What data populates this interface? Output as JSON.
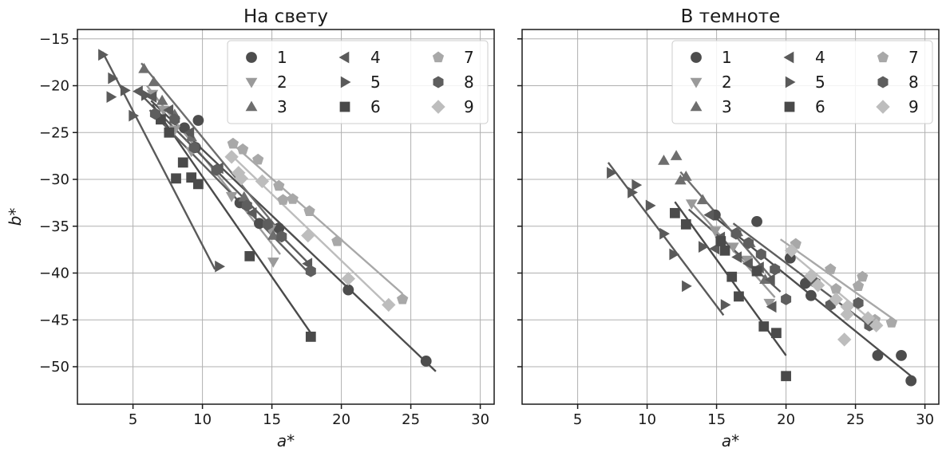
{
  "chart_data": [
    {
      "type": "scatter",
      "title": "На свету",
      "xlabel": "a*",
      "ylabel": "b*",
      "xlim": [
        1,
        31
      ],
      "ylim": [
        -54,
        -14
      ],
      "xticks": [
        5,
        10,
        15,
        20,
        25,
        30
      ],
      "yticks": [
        -15,
        -20,
        -25,
        -30,
        -35,
        -40,
        -45,
        -50
      ],
      "grid": true,
      "legend": {
        "location": "top-right",
        "columns": 3
      },
      "series": [
        {
          "name": "1",
          "marker": "circle",
          "color": "#4d4d4d",
          "points": [
            [
              9.7,
              -23.7
            ],
            [
              8.7,
              -24.5
            ],
            [
              9.5,
              -26.6
            ],
            [
              12.7,
              -32.5
            ],
            [
              14.1,
              -34.7
            ],
            [
              15.5,
              -35.2
            ],
            [
              20.5,
              -41.8
            ],
            [
              26.1,
              -49.4
            ]
          ],
          "fit": [
            [
              6.3,
              -21.6
            ],
            [
              26.8,
              -50.5
            ]
          ]
        },
        {
          "name": "2",
          "marker": "triangle-down",
          "color": "#9a9a9a",
          "points": [
            [
              6.4,
              -20.9
            ],
            [
              7.2,
              -22.6
            ],
            [
              8.0,
              -24.7
            ],
            [
              9.2,
              -27.0
            ],
            [
              12.1,
              -31.8
            ],
            [
              14.9,
              -35.3
            ],
            [
              15.1,
              -38.8
            ]
          ],
          "fit": [
            [
              6.0,
              -20.0
            ],
            [
              15.6,
              -38.0
            ]
          ]
        },
        {
          "name": "3",
          "marker": "triangle-up",
          "color": "#6e6e6e",
          "points": [
            [
              5.8,
              -18.2
            ],
            [
              6.5,
              -19.6
            ],
            [
              7.1,
              -21.6
            ],
            [
              8.0,
              -23.1
            ],
            [
              9.2,
              -25.5
            ],
            [
              13.0,
              -31.9
            ],
            [
              15.1,
              -36.0
            ]
          ],
          "fit": [
            [
              5.6,
              -17.6
            ],
            [
              15.6,
              -35.6
            ]
          ]
        },
        {
          "name": "4",
          "marker": "triangle-left",
          "color": "#5a5a5a",
          "points": [
            [
              5.4,
              -20.6
            ],
            [
              6.4,
              -21.2
            ],
            [
              7.6,
              -22.6
            ],
            [
              9.1,
              -25.0
            ],
            [
              11.2,
              -28.8
            ],
            [
              13.6,
              -33.6
            ],
            [
              17.6,
              -39.0
            ]
          ],
          "fit": [
            [
              5.2,
              -20.4
            ],
            [
              17.8,
              -39.2
            ]
          ]
        },
        {
          "name": "5",
          "marker": "triangle-right",
          "color": "#5a5a5a",
          "points": [
            [
              2.8,
              -16.7
            ],
            [
              3.5,
              -19.2
            ],
            [
              3.4,
              -21.2
            ],
            [
              4.4,
              -20.5
            ],
            [
              5.0,
              -23.2
            ],
            [
              5.9,
              -21.0
            ],
            [
              11.2,
              -39.3
            ]
          ],
          "fit": [
            [
              2.8,
              -16.4
            ],
            [
              10.9,
              -39.6
            ]
          ]
        },
        {
          "name": "6",
          "marker": "square",
          "color": "#4a4a4a",
          "points": [
            [
              7.0,
              -23.6
            ],
            [
              7.6,
              -25.0
            ],
            [
              8.6,
              -28.2
            ],
            [
              8.1,
              -29.9
            ],
            [
              9.7,
              -30.5
            ],
            [
              9.2,
              -29.8
            ],
            [
              13.4,
              -38.2
            ],
            [
              17.8,
              -46.8
            ]
          ],
          "fit": [
            [
              6.4,
              -22.0
            ],
            [
              17.8,
              -46.4
            ]
          ]
        },
        {
          "name": "7",
          "marker": "pentagon",
          "color": "#a8a8a8",
          "points": [
            [
              12.2,
              -26.2
            ],
            [
              12.9,
              -26.8
            ],
            [
              14.0,
              -27.9
            ],
            [
              15.5,
              -30.7
            ],
            [
              15.8,
              -32.2
            ],
            [
              16.5,
              -32.1
            ],
            [
              17.7,
              -33.4
            ],
            [
              19.7,
              -36.6
            ],
            [
              24.4,
              -42.8
            ]
          ],
          "fit": [
            [
              12.0,
              -26.0
            ],
            [
              24.4,
              -42.2
            ]
          ]
        },
        {
          "name": "8",
          "marker": "hexagon",
          "color": "#5e5e5e",
          "points": [
            [
              6.6,
              -23.0
            ],
            [
              8.0,
              -23.6
            ],
            [
              9.4,
              -26.6
            ],
            [
              11.0,
              -29.0
            ],
            [
              13.2,
              -32.8
            ],
            [
              14.7,
              -34.8
            ],
            [
              15.7,
              -36.1
            ],
            [
              17.8,
              -39.8
            ]
          ],
          "fit": [
            [
              6.2,
              -22.6
            ],
            [
              17.8,
              -40.2
            ]
          ]
        },
        {
          "name": "9",
          "marker": "diamond",
          "color": "#bdbdbd",
          "points": [
            [
              12.1,
              -27.6
            ],
            [
              12.6,
              -29.3
            ],
            [
              12.8,
              -29.9
            ],
            [
              14.3,
              -30.2
            ],
            [
              17.6,
              -36.0
            ],
            [
              20.5,
              -40.6
            ],
            [
              23.4,
              -43.4
            ]
          ],
          "fit": [
            [
              12.0,
              -27.3
            ],
            [
              23.6,
              -43.8
            ]
          ]
        }
      ]
    },
    {
      "type": "scatter",
      "title": "В темноте",
      "xlabel": "a*",
      "ylabel": "",
      "xlim": [
        1,
        31
      ],
      "ylim": [
        -54,
        -14
      ],
      "xticks": [
        5,
        10,
        15,
        20,
        25,
        30
      ],
      "yticks": [
        -15,
        -20,
        -25,
        -30,
        -35,
        -40,
        -45,
        -50
      ],
      "grid": true,
      "legend": {
        "location": "top-right",
        "columns": 3
      },
      "series": [
        {
          "name": "1",
          "marker": "circle",
          "color": "#4d4d4d",
          "points": [
            [
              17.9,
              -34.5
            ],
            [
              14.9,
              -33.8
            ],
            [
              20.3,
              -38.4
            ],
            [
              21.4,
              -41.1
            ],
            [
              21.8,
              -42.4
            ],
            [
              26.6,
              -48.8
            ],
            [
              28.3,
              -48.8
            ],
            [
              29.0,
              -51.5
            ]
          ],
          "fit": [
            [
              14.5,
              -33.6
            ],
            [
              29.0,
              -51.0
            ]
          ]
        },
        {
          "name": "2",
          "marker": "triangle-down",
          "color": "#9a9a9a",
          "points": [
            [
              13.2,
              -32.6
            ],
            [
              14.9,
              -35.5
            ],
            [
              16.2,
              -37.2
            ],
            [
              17.2,
              -38.6
            ],
            [
              18.8,
              -43.2
            ]
          ],
          "fit": [
            [
              13.0,
              -32.2
            ],
            [
              19.2,
              -42.6
            ]
          ]
        },
        {
          "name": "3",
          "marker": "triangle-up",
          "color": "#6e6e6e",
          "points": [
            [
              11.2,
              -28.0
            ],
            [
              12.1,
              -27.5
            ],
            [
              12.4,
              -30.1
            ],
            [
              12.8,
              -29.7
            ],
            [
              14.0,
              -32.2
            ],
            [
              16.5,
              -35.6
            ],
            [
              17.4,
              -36.8
            ],
            [
              18.5,
              -40.7
            ]
          ],
          "fit": [
            [
              12.4,
              -29.2
            ],
            [
              18.9,
              -40.4
            ]
          ]
        },
        {
          "name": "4",
          "marker": "triangle-left",
          "color": "#5a5a5a",
          "points": [
            [
              14.5,
              -33.8
            ],
            [
              14.9,
              -37.4
            ],
            [
              15.3,
              -36.2
            ],
            [
              16.5,
              -38.3
            ],
            [
              17.3,
              -39.0
            ],
            [
              18.1,
              -39.4
            ],
            [
              18.9,
              -40.7
            ],
            [
              19.0,
              -43.6
            ]
          ],
          "fit": [
            [
              13.0,
              -33.2
            ],
            [
              19.6,
              -42.0
            ]
          ]
        },
        {
          "name": "5",
          "marker": "triangle-right",
          "color": "#5a5a5a",
          "points": [
            [
              7.4,
              -29.3
            ],
            [
              8.9,
              -31.4
            ],
            [
              9.2,
              -30.6
            ],
            [
              10.2,
              -32.8
            ],
            [
              11.2,
              -35.8
            ],
            [
              11.9,
              -38.0
            ],
            [
              12.8,
              -41.4
            ],
            [
              14.0,
              -37.2
            ],
            [
              15.6,
              -43.4
            ]
          ],
          "fit": [
            [
              7.2,
              -28.2
            ],
            [
              15.5,
              -44.5
            ]
          ]
        },
        {
          "name": "6",
          "marker": "square",
          "color": "#4a4a4a",
          "points": [
            [
              12.0,
              -33.6
            ],
            [
              12.8,
              -34.8
            ],
            [
              15.3,
              -36.6
            ],
            [
              15.6,
              -37.6
            ],
            [
              16.1,
              -40.4
            ],
            [
              16.6,
              -42.5
            ],
            [
              17.9,
              -39.8
            ],
            [
              18.4,
              -45.7
            ],
            [
              19.3,
              -46.4
            ],
            [
              20.0,
              -51.0
            ]
          ],
          "fit": [
            [
              12.0,
              -32.4
            ],
            [
              20.0,
              -48.8
            ]
          ]
        },
        {
          "name": "7",
          "marker": "pentagon",
          "color": "#a8a8a8",
          "points": [
            [
              20.7,
              -36.9
            ],
            [
              23.2,
              -39.6
            ],
            [
              23.6,
              -41.7
            ],
            [
              25.2,
              -41.4
            ],
            [
              25.5,
              -40.4
            ],
            [
              26.4,
              -45.0
            ],
            [
              27.6,
              -45.3
            ]
          ],
          "fit": [
            [
              19.6,
              -36.4
            ],
            [
              27.8,
              -45.0
            ]
          ]
        },
        {
          "name": "8",
          "marker": "hexagon",
          "color": "#5e5e5e",
          "points": [
            [
              16.4,
              -35.8
            ],
            [
              17.3,
              -36.8
            ],
            [
              18.2,
              -38.0
            ],
            [
              19.2,
              -39.6
            ],
            [
              20.0,
              -42.8
            ],
            [
              22.1,
              -41.0
            ],
            [
              23.2,
              -43.4
            ],
            [
              25.2,
              -43.2
            ],
            [
              26.0,
              -45.6
            ]
          ],
          "fit": [
            [
              16.2,
              -34.7
            ],
            [
              26.0,
              -45.6
            ]
          ]
        },
        {
          "name": "9",
          "marker": "diamond",
          "color": "#bdbdbd",
          "points": [
            [
              20.4,
              -37.6
            ],
            [
              21.8,
              -40.3
            ],
            [
              22.3,
              -41.3
            ],
            [
              23.6,
              -42.8
            ],
            [
              24.4,
              -43.6
            ],
            [
              24.4,
              -44.4
            ],
            [
              24.2,
              -47.1
            ],
            [
              25.9,
              -44.8
            ],
            [
              26.5,
              -45.6
            ]
          ],
          "fit": [
            [
              20.0,
              -37.4
            ],
            [
              26.6,
              -45.6
            ]
          ]
        }
      ]
    }
  ]
}
